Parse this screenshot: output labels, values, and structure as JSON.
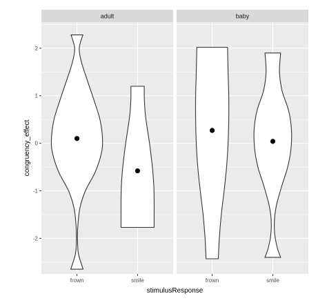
{
  "chart_data": {
    "type": "violin",
    "xlabel": "stimulusResponse",
    "ylabel": "congruency_effect",
    "ylim": [
      -2.75,
      2.55
    ],
    "y_ticks": [
      -2,
      -1,
      0,
      1,
      2
    ],
    "categories": [
      "frown",
      "smile"
    ],
    "grid": true,
    "panels": [
      {
        "name": "adult",
        "violins": [
          {
            "category": "frown",
            "mean": 0.1,
            "range": [
              -2.65,
              2.28
            ],
            "profile": [
              [
                -2.65,
                0.24
              ],
              [
                -2.5,
                0.15
              ],
              [
                -2.3,
                0.05
              ],
              [
                -2.0,
                0.02
              ],
              [
                -1.7,
                0.04
              ],
              [
                -1.35,
                0.12
              ],
              [
                -1.0,
                0.33
              ],
              [
                -0.6,
                0.72
              ],
              [
                -0.2,
                0.96
              ],
              [
                0.1,
                1.0
              ],
              [
                0.5,
                0.9
              ],
              [
                0.9,
                0.67
              ],
              [
                1.3,
                0.42
              ],
              [
                1.7,
                0.18
              ],
              [
                2.0,
                0.09
              ],
              [
                2.28,
                0.23
              ]
            ]
          },
          {
            "category": "smile",
            "mean": -0.58,
            "range": [
              -1.77,
              1.2
            ],
            "profile": [
              [
                -1.77,
                1.0
              ],
              [
                -1.5,
                1.0
              ],
              [
                -1.2,
                1.0
              ],
              [
                -0.9,
                0.98
              ],
              [
                -0.6,
                0.92
              ],
              [
                -0.3,
                0.83
              ],
              [
                0.0,
                0.72
              ],
              [
                0.3,
                0.59
              ],
              [
                0.6,
                0.47
              ],
              [
                0.9,
                0.41
              ],
              [
                1.2,
                0.4
              ]
            ]
          }
        ]
      },
      {
        "name": "baby",
        "violins": [
          {
            "category": "frown",
            "mean": 0.27,
            "range": [
              -2.43,
              2.02
            ],
            "profile": [
              [
                -2.43,
                0.37
              ],
              [
                -2.0,
                0.43
              ],
              [
                -1.5,
                0.55
              ],
              [
                -1.0,
                0.72
              ],
              [
                -0.5,
                0.87
              ],
              [
                0.0,
                0.96
              ],
              [
                0.5,
                1.0
              ],
              [
                1.0,
                1.0
              ],
              [
                1.5,
                0.96
              ],
              [
                2.02,
                0.93
              ]
            ]
          },
          {
            "category": "smile",
            "mean": 0.04,
            "range": [
              -2.4,
              1.9
            ],
            "profile": [
              [
                -2.4,
                0.42
              ],
              [
                -2.2,
                0.24
              ],
              [
                -1.9,
                0.1
              ],
              [
                -1.6,
                0.09
              ],
              [
                -1.3,
                0.2
              ],
              [
                -0.9,
                0.48
              ],
              [
                -0.5,
                0.8
              ],
              [
                -0.1,
                0.98
              ],
              [
                0.3,
                1.0
              ],
              [
                0.7,
                0.84
              ],
              [
                1.1,
                0.5
              ],
              [
                1.5,
                0.36
              ],
              [
                1.9,
                0.42
              ]
            ]
          }
        ]
      }
    ]
  }
}
